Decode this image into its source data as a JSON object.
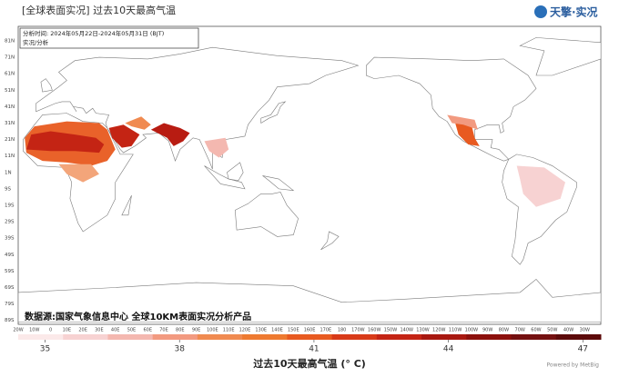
{
  "header": {
    "title": "[全球表面实况]  过去10天最高气温",
    "logo": "天擎·实况"
  },
  "info": {
    "analysis_time": "分析时间:  2024年05月22日-2024年05月31日 (BJT)",
    "kind": "实况/分析"
  },
  "map": {
    "lat_labels": [
      "81N",
      "71N",
      "61N",
      "51N",
      "41N",
      "31N",
      "21N",
      "11N",
      "1N",
      "9S",
      "19S",
      "29S",
      "39S",
      "49S",
      "59S",
      "69S",
      "79S",
      "89S"
    ],
    "lon_labels": [
      "20W",
      "10W",
      "0",
      "10E",
      "20E",
      "30E",
      "40E",
      "50E",
      "60E",
      "70E",
      "80E",
      "90E",
      "100E",
      "110E",
      "120E",
      "130E",
      "140E",
      "150E",
      "160E",
      "170E",
      "180",
      "170W",
      "160W",
      "150W",
      "140W",
      "130W",
      "120W",
      "110W",
      "100W",
      "90W",
      "80W",
      "70W",
      "60W",
      "50W",
      "40W",
      "30W"
    ]
  },
  "source": "数据源:国家气象信息中心  全球10KM表面实况分析产品",
  "colorbar": {
    "title": "过去10天最高气温 (° C)",
    "clim": [
      34.4,
      47.4
    ],
    "ticks": [
      35,
      38,
      41,
      44,
      47
    ],
    "colors": [
      "#fbe9e9",
      "#f7d2d2",
      "#f4b8b0",
      "#f29a80",
      "#f08a50",
      "#ee7a30",
      "#e85a20",
      "#d83a18",
      "#c42414",
      "#a81810",
      "#8c100c",
      "#741010",
      "#5c0a0a"
    ]
  },
  "credit": "Powered by MetBig"
}
